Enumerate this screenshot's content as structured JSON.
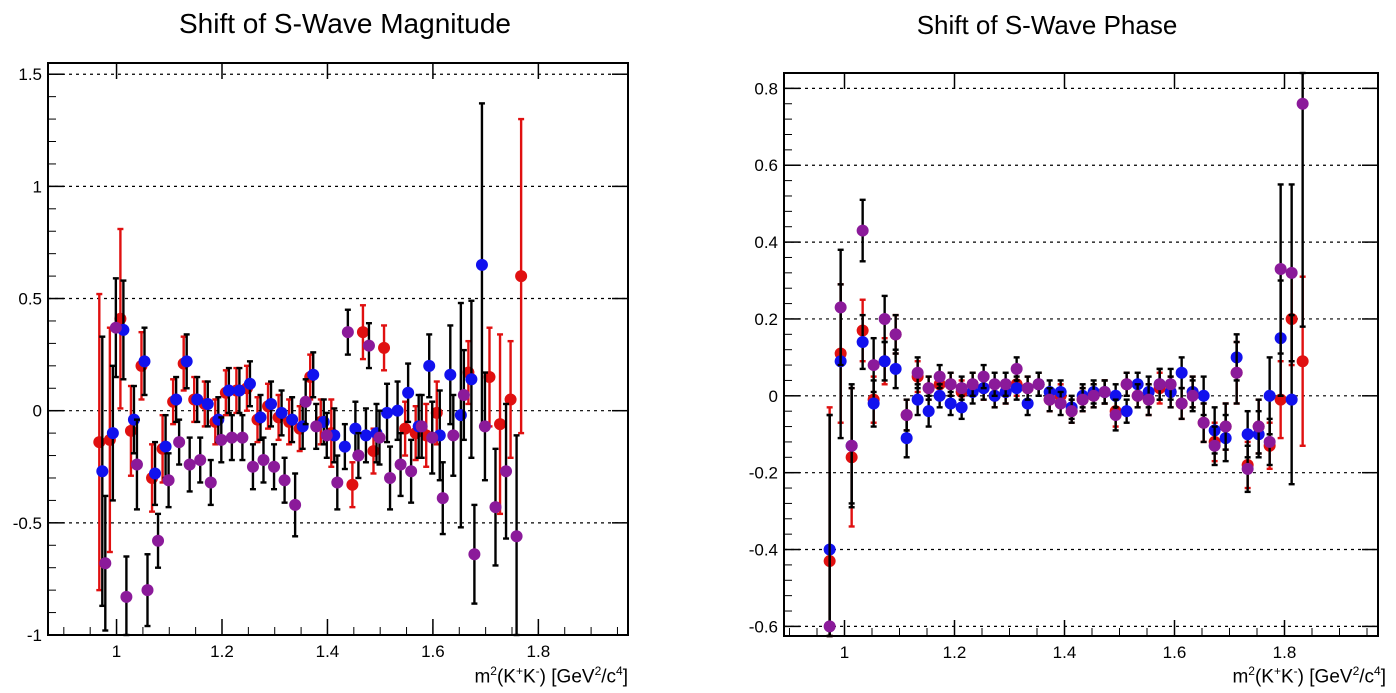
{
  "charts": [
    {
      "id": "left",
      "title": "Shift of S-Wave Magnitude",
      "xlabel_parts": {
        "a": "m",
        "b": "2",
        "c": "(K",
        "d": "+",
        "e": "K",
        "f": "-",
        "g": ") [GeV",
        "h": "2",
        "i": "/c",
        "j": "4",
        "k": "]"
      }
    },
    {
      "id": "right",
      "title": "Shift of S-Wave Phase",
      "xlabel_parts": {
        "a": "m",
        "b": "2",
        "c": "(K",
        "d": "+",
        "e": "K",
        "f": "-",
        "g": ") [GeV",
        "h": "2",
        "i": "/c",
        "j": "4",
        "k": "]"
      }
    }
  ],
  "chart_data": [
    {
      "type": "scatter",
      "title": "Shift of S-Wave Magnitude",
      "xlabel": "m2(K+K-) [GeV2/c4]",
      "xlim": [
        0.87,
        1.97
      ],
      "ylim": [
        -1.0,
        1.55
      ],
      "xticks": [
        1,
        1.2,
        1.4,
        1.6,
        1.8
      ],
      "xtick_labels": [
        "1",
        "1.2",
        "1.4",
        "1.6",
        "1.8"
      ],
      "yticks": [
        -1,
        -0.5,
        0,
        0.5,
        1,
        1.5
      ],
      "ytick_labels": [
        "-1",
        "-0.5",
        "0",
        "0.5",
        "1",
        "1.5"
      ],
      "grid": "horizontal dotted",
      "x": [
        0.973,
        0.993,
        1.013,
        1.033,
        1.053,
        1.073,
        1.093,
        1.113,
        1.133,
        1.153,
        1.173,
        1.193,
        1.213,
        1.233,
        1.253,
        1.273,
        1.293,
        1.313,
        1.333,
        1.353,
        1.373,
        1.393,
        1.413,
        1.433,
        1.453,
        1.473,
        1.493,
        1.513,
        1.533,
        1.553,
        1.573,
        1.593,
        1.613,
        1.633,
        1.653,
        1.673,
        1.693,
        1.713,
        1.733,
        1.753,
        1.773,
        1.793,
        1.813,
        1.833,
        1.853,
        1.873,
        1.893
      ],
      "series": [
        {
          "color": "#e01010",
          "y": [
            -0.14,
            -0.13,
            0.41,
            -0.09,
            0.2,
            -0.3,
            -0.17,
            0.04,
            0.21,
            0.05,
            0.03,
            -0.05,
            0.08,
            0.09,
            0.1,
            -0.04,
            0.02,
            -0.03,
            -0.05,
            -0.08,
            0.15,
            -0.05,
            -0.1,
            null,
            -0.33,
            0.35,
            -0.18,
            0.28,
            null,
            -0.08,
            -0.1,
            -0.11,
            -0.01,
            null,
            null,
            0.17,
            null,
            0.15,
            -0.06,
            0.05,
            0.6,
            null,
            null,
            null,
            null,
            null,
            null
          ],
          "err": [
            0.66,
            0.5,
            0.4,
            0.2,
            0.15,
            0.15,
            0.15,
            0.1,
            0.12,
            0.1,
            0.1,
            0.1,
            0.1,
            0.1,
            0.1,
            0.1,
            0.1,
            0.1,
            0.1,
            0.1,
            0.1,
            0.1,
            0.15,
            0,
            0.1,
            0.12,
            0.1,
            0.1,
            0,
            0.12,
            0.12,
            0.14,
            0.14,
            0,
            0,
            0.14,
            0,
            0.22,
            0.4,
            0.26,
            0.7,
            0,
            0,
            0,
            0,
            0,
            0
          ]
        },
        {
          "color": "#1111ee",
          "y": [
            -0.27,
            -0.1,
            0.36,
            -0.04,
            0.22,
            -0.28,
            -0.16,
            0.05,
            0.22,
            0.05,
            0.03,
            -0.04,
            0.09,
            0.09,
            0.12,
            -0.03,
            0.03,
            -0.01,
            -0.04,
            -0.07,
            0.16,
            -0.05,
            -0.11,
            -0.16,
            -0.08,
            -0.11,
            -0.1,
            -0.01,
            0.0,
            0.08,
            -0.07,
            0.2,
            -0.11,
            0.16,
            -0.02,
            0.14,
            0.65,
            null,
            null,
            null,
            null,
            null,
            null,
            null,
            null,
            null,
            null
          ],
          "err": [
            0.6,
            0.3,
            0.22,
            0.15,
            0.15,
            0.14,
            0.14,
            0.1,
            0.12,
            0.1,
            0.1,
            0.1,
            0.1,
            0.1,
            0.1,
            0.1,
            0.1,
            0.1,
            0.1,
            0.1,
            0.1,
            0.1,
            0.12,
            0.1,
            0.12,
            0.12,
            0.13,
            0.13,
            0.13,
            0.13,
            0.14,
            0.14,
            0.2,
            0.22,
            0.5,
            0.35,
            0.72,
            0,
            0,
            0,
            0,
            0,
            0,
            0,
            0,
            0,
            0
          ]
        },
        {
          "color": "#8b1a9a",
          "y": [
            -0.68,
            0.37,
            -0.83,
            -0.24,
            -0.8,
            -0.58,
            -0.31,
            -0.14,
            -0.24,
            -0.22,
            -0.32,
            -0.13,
            -0.12,
            -0.12,
            -0.25,
            -0.22,
            -0.25,
            -0.31,
            -0.42,
            0.04,
            -0.07,
            -0.11,
            -0.32,
            0.35,
            -0.2,
            0.29,
            -0.12,
            -0.3,
            -0.24,
            -0.27,
            -0.07,
            -0.12,
            -0.39,
            -0.11,
            0.07,
            -0.64,
            -0.07,
            -0.43,
            -0.27,
            -0.56,
            null,
            null,
            null,
            null,
            null,
            null,
            null
          ],
          "err": [
            0.3,
            0.22,
            0.18,
            0.2,
            0.16,
            0.12,
            0.12,
            0.1,
            0.12,
            0.1,
            0.1,
            0.1,
            0.1,
            0.1,
            0.1,
            0.1,
            0.1,
            0.1,
            0.14,
            0.1,
            0.1,
            0.1,
            0.12,
            0.1,
            0.1,
            0.1,
            0.12,
            0.14,
            0.14,
            0.14,
            0.14,
            0.16,
            0.16,
            0.18,
            0.2,
            0.22,
            0.24,
            0.26,
            0.3,
            0.45,
            0,
            0,
            0,
            0,
            0,
            0,
            0
          ]
        }
      ]
    },
    {
      "type": "scatter",
      "title": "Shift of S-Wave Phase",
      "xlabel": "m2(K+K-) [GeV2/c4]",
      "xlim": [
        0.89,
        1.97
      ],
      "ylim": [
        -0.625,
        0.84
      ],
      "xticks": [
        1,
        1.2,
        1.4,
        1.6,
        1.8
      ],
      "xtick_labels": [
        "1",
        "1.2",
        "1.4",
        "1.6",
        "1.8"
      ],
      "yticks": [
        -0.6,
        -0.4,
        -0.2,
        0,
        0.2,
        0.4,
        0.6,
        0.8
      ],
      "ytick_labels": [
        "-0.6",
        "-0.4",
        "-0.2",
        "0",
        "0.2",
        "0.4",
        "0.6",
        "0.8"
      ],
      "grid": "horizontal dotted",
      "x": [
        0.973,
        0.993,
        1.013,
        1.033,
        1.053,
        1.073,
        1.093,
        1.113,
        1.133,
        1.153,
        1.173,
        1.193,
        1.213,
        1.233,
        1.253,
        1.273,
        1.293,
        1.313,
        1.333,
        1.353,
        1.373,
        1.393,
        1.413,
        1.433,
        1.453,
        1.473,
        1.493,
        1.513,
        1.533,
        1.553,
        1.573,
        1.593,
        1.613,
        1.633,
        1.653,
        1.673,
        1.693,
        1.713,
        1.733,
        1.753,
        1.773,
        1.793,
        1.813,
        1.833,
        1.853,
        1.873,
        1.893
      ],
      "series": [
        {
          "color": "#e01010",
          "y": [
            -0.43,
            0.11,
            -0.16,
            0.17,
            -0.01,
            0.09,
            0.16,
            -0.05,
            0.05,
            0.02,
            0.03,
            0.03,
            0.01,
            0.03,
            0.02,
            0.0,
            0.01,
            0.03,
            0.02,
            0.03,
            -0.01,
            0.0,
            -0.04,
            -0.01,
            0.0,
            0.01,
            -0.04,
            0.03,
            0.0,
            -0.01,
            0.02,
            0.01,
            -0.02,
            0.01,
            -0.07,
            -0.12,
            -0.08,
            0.06,
            -0.18,
            -0.08,
            -0.13,
            -0.01,
            0.2,
            0.09,
            null,
            null,
            null
          ],
          "err": [
            0.4,
            0.18,
            0.18,
            0.08,
            0.06,
            0.06,
            0.05,
            0.04,
            0.04,
            0.03,
            0.03,
            0.03,
            0.03,
            0.03,
            0.03,
            0.03,
            0.03,
            0.03,
            0.03,
            0.03,
            0.03,
            0.03,
            0.03,
            0.03,
            0.03,
            0.03,
            0.04,
            0.03,
            0.03,
            0.04,
            0.04,
            0.04,
            0.04,
            0.04,
            0.05,
            0.05,
            0.06,
            0.08,
            0.06,
            0.07,
            0.06,
            0.1,
            0.12,
            0.22,
            0,
            0,
            0
          ]
        },
        {
          "color": "#1111ee",
          "y": [
            -0.4,
            0.09,
            -0.13,
            0.14,
            -0.02,
            0.09,
            0.07,
            -0.11,
            -0.01,
            -0.04,
            0.0,
            -0.02,
            -0.03,
            0.01,
            0.02,
            0.0,
            0.01,
            0.02,
            -0.02,
            0.03,
            0.01,
            0.01,
            -0.03,
            0.0,
            0.01,
            0.01,
            0.0,
            -0.04,
            0.03,
            0.01,
            0.03,
            0.01,
            0.06,
            0.01,
            0.0,
            -0.09,
            -0.11,
            0.1,
            -0.1,
            -0.1,
            0.0,
            0.15,
            -0.01,
            null,
            null,
            null,
            null
          ],
          "err": [
            0.35,
            0.2,
            0.16,
            0.07,
            0.06,
            0.05,
            0.05,
            0.05,
            0.04,
            0.04,
            0.03,
            0.03,
            0.03,
            0.03,
            0.03,
            0.03,
            0.03,
            0.03,
            0.03,
            0.03,
            0.03,
            0.03,
            0.03,
            0.03,
            0.03,
            0.03,
            0.03,
            0.03,
            0.03,
            0.04,
            0.04,
            0.04,
            0.04,
            0.04,
            0.05,
            0.06,
            0.06,
            0.06,
            0.06,
            0.06,
            0.1,
            0.15,
            0.22,
            0,
            0,
            0,
            0
          ]
        },
        {
          "color": "#8b1a9a",
          "y": [
            -0.6,
            0.23,
            -0.13,
            0.43,
            0.08,
            0.2,
            0.16,
            -0.05,
            0.06,
            0.02,
            0.05,
            0.03,
            0.02,
            0.03,
            0.05,
            0.03,
            0.03,
            0.07,
            0.02,
            0.03,
            -0.01,
            -0.02,
            -0.04,
            -0.01,
            0.0,
            0.01,
            -0.05,
            0.03,
            0.0,
            -0.01,
            0.03,
            0.03,
            -0.02,
            0.0,
            -0.07,
            -0.13,
            -0.08,
            0.06,
            -0.19,
            -0.08,
            -0.12,
            0.33,
            0.32,
            0.76,
            null,
            null,
            null
          ],
          "err": [
            0.55,
            0.15,
            0.15,
            0.08,
            0.07,
            0.06,
            0.05,
            0.04,
            0.04,
            0.03,
            0.03,
            0.03,
            0.03,
            0.03,
            0.03,
            0.03,
            0.03,
            0.03,
            0.03,
            0.03,
            0.03,
            0.03,
            0.03,
            0.03,
            0.03,
            0.03,
            0.04,
            0.03,
            0.03,
            0.04,
            0.04,
            0.04,
            0.04,
            0.04,
            0.05,
            0.05,
            0.06,
            0.08,
            0.06,
            0.07,
            0.06,
            0.22,
            0.23,
            0.58,
            0,
            0,
            0
          ]
        }
      ]
    }
  ]
}
